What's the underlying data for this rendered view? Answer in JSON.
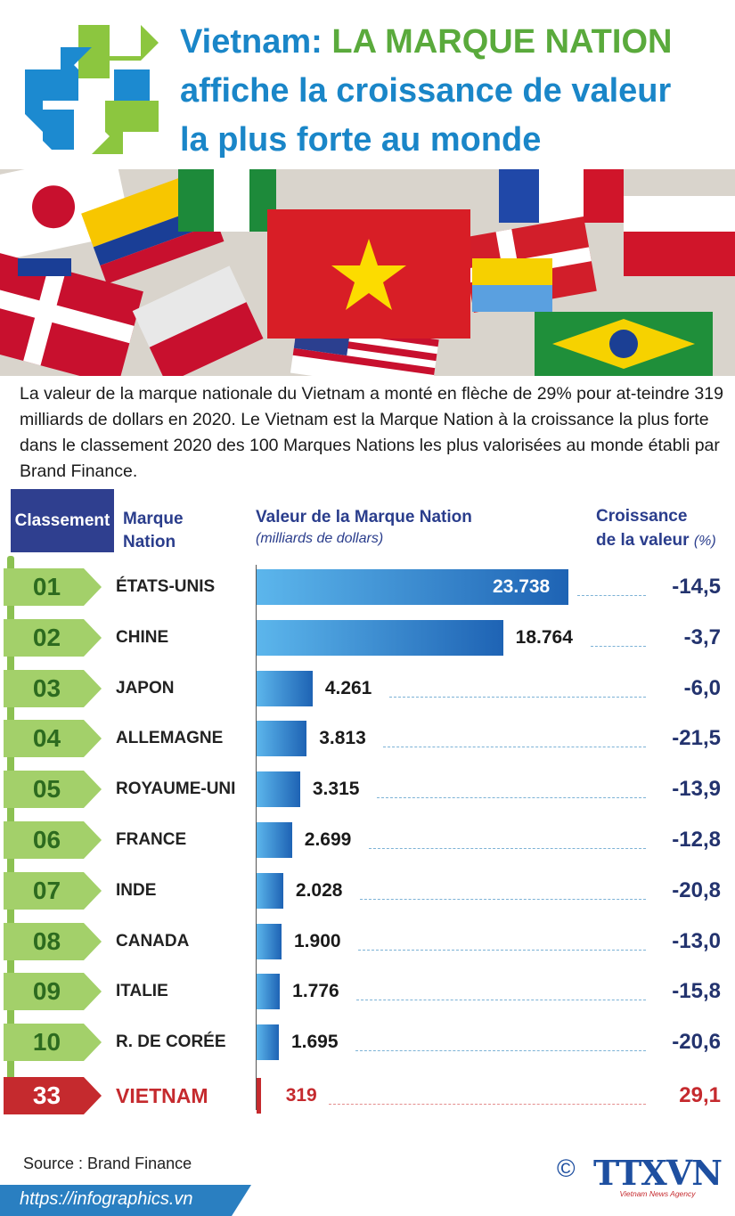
{
  "header": {
    "title_part1": "Vietnam: ",
    "title_part2": "LA MARQUE NATION",
    "title_line2": "affiche la croissance de valeur",
    "title_line3": "la plus forte au monde"
  },
  "intro": "La valeur de la marque nationale du Vietnam a monté en flèche de 29% pour at-teindre 319 milliards de dollars en 2020. Le Vietnam est la Marque Nation à la croissance la plus forte dans le classement 2020 des 100 Marques Nations les plus valorisées au monde établi par Brand Finance.",
  "columns": {
    "rank": "Classement",
    "nation_line1": "Marque",
    "nation_line2": "Nation",
    "value": "Valeur de la Marque Nation",
    "value_unit": "(milliards de dollars)",
    "growth_line1": "Croissance",
    "growth_line2": "de la valeur",
    "growth_unit": "(%)"
  },
  "colors": {
    "bar_start": "#5cb6ec",
    "bar_end": "#1e63b4",
    "highlight": "#c52a2e",
    "badge_green": "#a3d06a",
    "header_blue": "#2f3f8f"
  },
  "chart_data": {
    "type": "bar",
    "orientation": "horizontal",
    "xlim": [
      0,
      23738
    ],
    "categories": [
      "ÉTATS-UNIS",
      "CHINE",
      "JAPON",
      "ALLEMAGNE",
      "ROYAUME-UNI",
      "FRANCE",
      "INDE",
      "CANADA",
      "ITALIE",
      "R. DE CORÉE",
      "VIETNAM"
    ],
    "rows": [
      {
        "rank": "01",
        "country": "ÉTATS-UNIS",
        "value": 23738,
        "value_label": "23.738",
        "growth": "-14,5"
      },
      {
        "rank": "02",
        "country": "CHINE",
        "value": 18764,
        "value_label": "18.764",
        "growth": "-3,7"
      },
      {
        "rank": "03",
        "country": "JAPON",
        "value": 4261,
        "value_label": "4.261",
        "growth": "-6,0"
      },
      {
        "rank": "04",
        "country": "ALLEMAGNE",
        "value": 3813,
        "value_label": "3.813",
        "growth": "-21,5"
      },
      {
        "rank": "05",
        "country": "ROYAUME-UNI",
        "value": 3315,
        "value_label": "3.315",
        "growth": "-13,9"
      },
      {
        "rank": "06",
        "country": "FRANCE",
        "value": 2699,
        "value_label": "2.699",
        "growth": "-12,8"
      },
      {
        "rank": "07",
        "country": "INDE",
        "value": 2028,
        "value_label": "2.028",
        "growth": "-20,8"
      },
      {
        "rank": "08",
        "country": "CANADA",
        "value": 1900,
        "value_label": "1.900",
        "growth": "-13,0"
      },
      {
        "rank": "09",
        "country": "ITALIE",
        "value": 1776,
        "value_label": "1.776",
        "growth": "-15,8"
      },
      {
        "rank": "10",
        "country": "R. DE CORÉE",
        "value": 1695,
        "value_label": "1.695",
        "growth": "-20,6"
      },
      {
        "rank": "33",
        "country": "VIETNAM",
        "value": 319,
        "value_label": "319",
        "growth": "29,1",
        "highlight": true
      }
    ]
  },
  "footer": {
    "source": "Source : Brand Finance",
    "copyright": "©",
    "agency": "TTXVN",
    "agency_sub": "Vietnam News Agency",
    "url": "https://infographics.vn"
  }
}
